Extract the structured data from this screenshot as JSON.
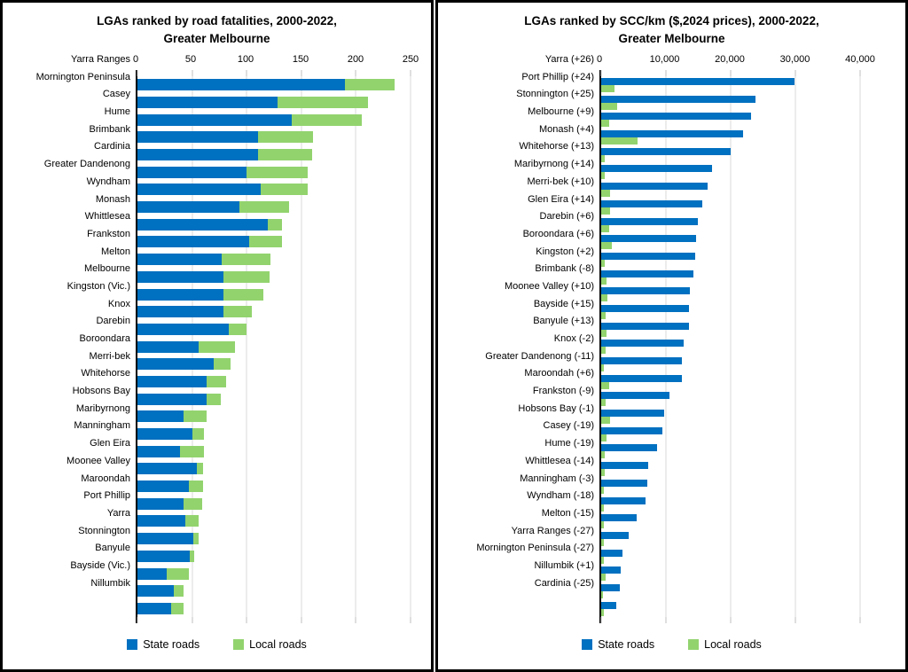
{
  "legend": {
    "items": [
      "State roads",
      "Local roads"
    ]
  },
  "colors": {
    "state_roads": "#0070C0",
    "local_roads": "#92D36E",
    "gridline": "#D9D9D9",
    "axis_line": "#000000"
  },
  "chart_data": [
    {
      "type": "bar",
      "orientation": "horizontal",
      "stacking": "stacked",
      "title": "LGAs ranked by road fatalities, 2000-2022,",
      "subtitle": "Greater Melbourne",
      "xlim": [
        0,
        250
      ],
      "tick_values": [
        0,
        50,
        100,
        150,
        200,
        250
      ],
      "tick_labels": [
        "0",
        "50",
        "100",
        "150",
        "200",
        "250"
      ],
      "grid": true,
      "legend_position": "bottom",
      "categories": [
        "Yarra Ranges",
        "Mornington Peninsula",
        "Casey",
        "Hume",
        "Brimbank",
        "Cardinia",
        "Greater Dandenong",
        "Wyndham",
        "Monash",
        "Whittlesea",
        "Frankston",
        "Melton",
        "Melbourne",
        "Kingston (Vic.)",
        "Knox",
        "Darebin",
        "Boroondara",
        "Merri-bek",
        "Whitehorse",
        "Hobsons Bay",
        "Maribyrnong",
        "Manningham",
        "Glen Eira",
        "Moonee Valley",
        "Maroondah",
        "Port Phillip",
        "Yarra",
        "Stonnington",
        "Banyule",
        "Bayside (Vic.)",
        "Nillumbik"
      ],
      "series": [
        {
          "name": "State roads",
          "color": "#0070C0",
          "values": [
            190,
            128,
            141,
            110,
            110,
            100,
            113,
            93,
            119,
            102,
            77,
            79,
            79,
            79,
            84,
            56,
            70,
            63,
            63,
            42,
            50,
            39,
            54,
            47,
            42,
            44,
            51,
            48,
            27,
            33,
            31
          ]
        },
        {
          "name": "Local roads",
          "color": "#92D36E",
          "values": [
            45,
            83,
            64,
            51,
            50,
            56,
            43,
            46,
            13,
            30,
            45,
            42,
            36,
            26,
            16,
            33,
            15,
            18,
            13,
            21,
            11,
            22,
            6,
            13,
            17,
            12,
            5,
            4,
            20,
            9,
            11
          ]
        }
      ]
    },
    {
      "type": "bar",
      "orientation": "horizontal",
      "stacking": "grouped",
      "title": "LGAs ranked by SCC/km ($,2024 prices), 2000-2022,",
      "subtitle": "Greater Melbourne",
      "xlim": [
        0,
        40000
      ],
      "tick_values": [
        0,
        10000,
        20000,
        30000,
        40000
      ],
      "tick_labels": [
        "0",
        "10,000",
        "20,000",
        "30,000",
        "40,000"
      ],
      "grid": true,
      "legend_position": "bottom",
      "categories": [
        "Yarra (+26)",
        "Port Phillip (+24)",
        "Stonnington (+25)",
        "Melbourne (+9)",
        "Monash (+4)",
        "Whitehorse (+13)",
        "Maribyrnong (+14)",
        "Merri-bek (+10)",
        "Glen Eira (+14)",
        "Darebin (+6)",
        "Boroondara (+6)",
        "Kingston (+2)",
        "Brimbank (-8)",
        "Moonee Valley (+10)",
        "Bayside (+15)",
        "Banyule (+13)",
        "Knox (-2)",
        "Greater Dandenong (-11)",
        "Maroondah (+6)",
        "Frankston (-9)",
        "Hobsons Bay (-1)",
        "Casey (-19)",
        "Hume (-19)",
        "Whittlesea (-14)",
        "Manningham (-3)",
        "Wyndham (-18)",
        "Melton (-15)",
        "Yarra Ranges (-27)",
        "Mornington Peninsula (-27)",
        "Nillumbik (+1)",
        "Cardinia (-25)"
      ],
      "series": [
        {
          "name": "State roads",
          "color": "#0070C0",
          "values": [
            29800,
            23800,
            23100,
            21900,
            20000,
            17100,
            16500,
            15600,
            14900,
            14700,
            14500,
            14300,
            13700,
            13600,
            13500,
            12700,
            12400,
            12400,
            10600,
            9700,
            9500,
            8600,
            7200,
            7100,
            6800,
            5500,
            4200,
            3300,
            3000,
            2900,
            2300
          ]
        },
        {
          "name": "Local roads",
          "color": "#92D36E",
          "values": [
            2000,
            2500,
            1200,
            5600,
            600,
            500,
            1400,
            1400,
            1300,
            1600,
            550,
            800,
            950,
            700,
            800,
            700,
            400,
            1250,
            700,
            1350,
            800,
            500,
            550,
            450,
            450,
            450,
            370,
            400,
            700,
            300,
            450
          ]
        }
      ]
    }
  ]
}
